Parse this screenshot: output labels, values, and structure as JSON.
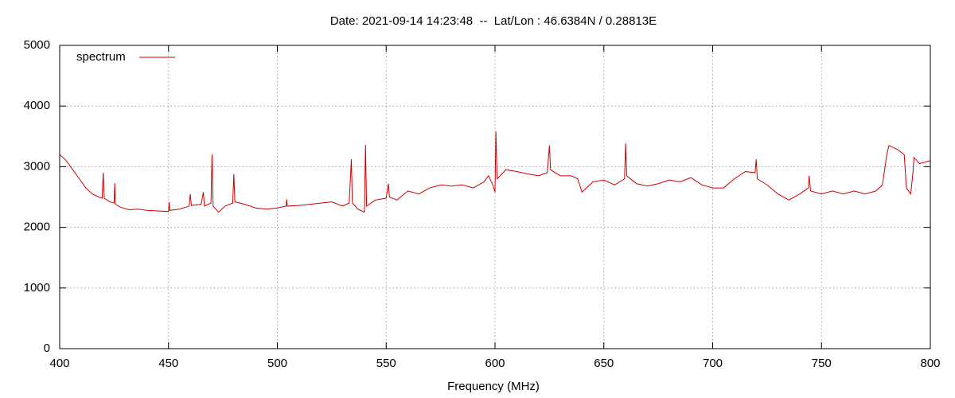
{
  "chart_data": {
    "type": "line",
    "title": "Date: 2021-09-14 14:23:48  --  Lat/Lon : 46.6384N / 0.28813E",
    "x_label": "Frequency (MHz)",
    "x": [
      400,
      403,
      406,
      409,
      412,
      415,
      418,
      419.5,
      420,
      420.5,
      423,
      425,
      425.3,
      425.6,
      428,
      432,
      436,
      440,
      445,
      450,
      450.3,
      450.6,
      455,
      459.5,
      460,
      460.5,
      465,
      466,
      466.5,
      469.5,
      470,
      470.5,
      473,
      476,
      479.5,
      480,
      480.5,
      485,
      490,
      495,
      500,
      504,
      504.3,
      504.6,
      510,
      515,
      520,
      525,
      530,
      533,
      534,
      534.5,
      537,
      540,
      540.5,
      541,
      545,
      550,
      551,
      551.5,
      555,
      560,
      565,
      570,
      575,
      580,
      585,
      590,
      595,
      597,
      599,
      600,
      600.4,
      601,
      605,
      610,
      615,
      620,
      624,
      625,
      625.5,
      630,
      635,
      638,
      640,
      645,
      650,
      655,
      659.5,
      660,
      660.5,
      665,
      670,
      675,
      680,
      685,
      690,
      695,
      700,
      705,
      710,
      715,
      719.5,
      720,
      720.5,
      725,
      730,
      735,
      740,
      744,
      744.3,
      745,
      750,
      755,
      760,
      765,
      770,
      775,
      778,
      780,
      781,
      785,
      788,
      789,
      791,
      792,
      792.5,
      795,
      800
    ],
    "series": [
      {
        "name": "spectrum",
        "color": "#cc0000",
        "values": [
          3200,
          3100,
          2950,
          2800,
          2650,
          2550,
          2500,
          2480,
          2900,
          2480,
          2420,
          2400,
          2730,
          2380,
          2330,
          2290,
          2300,
          2280,
          2270,
          2260,
          2420,
          2280,
          2300,
          2350,
          2550,
          2360,
          2380,
          2580,
          2350,
          2400,
          3200,
          2350,
          2250,
          2350,
          2400,
          2880,
          2420,
          2380,
          2320,
          2300,
          2320,
          2350,
          2460,
          2350,
          2360,
          2380,
          2400,
          2420,
          2350,
          2400,
          3120,
          2400,
          2300,
          2250,
          3360,
          2350,
          2450,
          2480,
          2720,
          2500,
          2450,
          2600,
          2550,
          2650,
          2700,
          2680,
          2700,
          2650,
          2750,
          2850,
          2700,
          2580,
          3580,
          2800,
          2950,
          2920,
          2880,
          2850,
          2900,
          3350,
          2950,
          2850,
          2850,
          2800,
          2580,
          2750,
          2780,
          2700,
          2800,
          3380,
          2850,
          2720,
          2680,
          2720,
          2780,
          2750,
          2820,
          2700,
          2650,
          2650,
          2800,
          2920,
          2900,
          3120,
          2800,
          2700,
          2550,
          2450,
          2550,
          2650,
          2850,
          2600,
          2550,
          2600,
          2550,
          2600,
          2550,
          2600,
          2700,
          3200,
          3350,
          3280,
          3200,
          2650,
          2550,
          2900,
          3150,
          3050,
          3100
        ]
      }
    ],
    "xlim": [
      400,
      800
    ],
    "xticks": [
      400,
      450,
      500,
      550,
      600,
      650,
      700,
      750,
      800
    ],
    "ylim": [
      0,
      5000
    ],
    "yticks": [
      0,
      1000,
      2000,
      3000,
      4000,
      5000
    ],
    "grid": true,
    "legend": "top-left"
  }
}
